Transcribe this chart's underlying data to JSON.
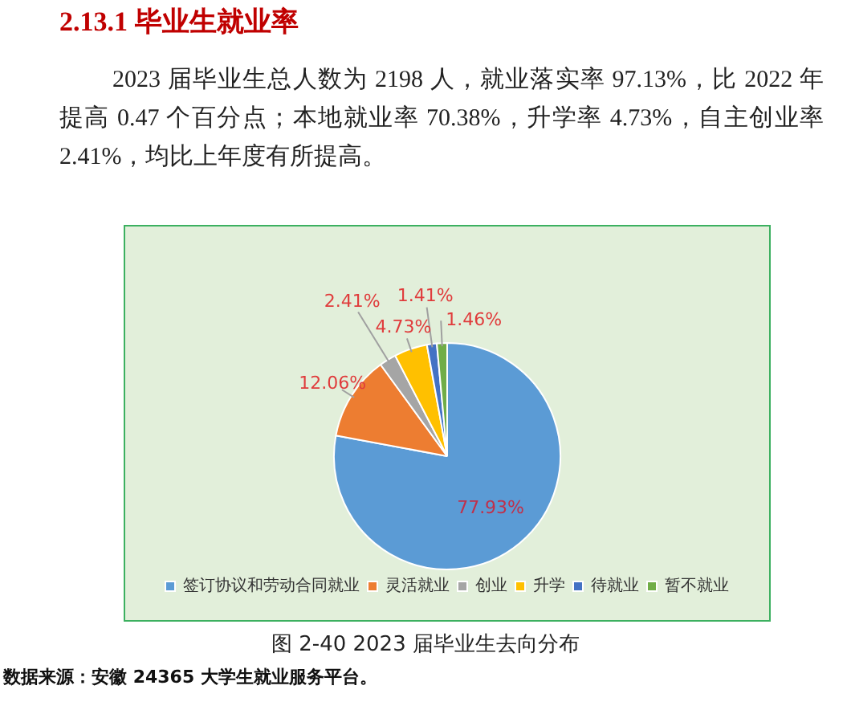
{
  "chart_data": {
    "type": "pie",
    "title": "2.13.1 毕业生就业率",
    "subtitle": "2023 届毕业生总人数为 2198 人，就业落实率 97.13%，比 2022 年提高 0.47 个百分点；本地就业率 70.38%，升学率 4.73%，自主创业率 2.41%，均比上年度有所提高。",
    "categories": [
      "签订协议和劳动合同就业",
      "灵活就业",
      "创业",
      "升学",
      "待就业",
      "暂不就业"
    ],
    "values": [
      77.93,
      12.06,
      2.41,
      4.73,
      1.41,
      1.46
    ],
    "colors": [
      "#5b9bd5",
      "#ed7d31",
      "#a5a5a5",
      "#ffc000",
      "#4472c4",
      "#70ad47"
    ],
    "value_labels": [
      "77.93%",
      "12.06%",
      "2.41%",
      "4.73%",
      "1.41%",
      "1.46%"
    ],
    "legend": "bottom",
    "annotations": [
      "图 2-40 2023 届毕业生去向分布",
      "数据来源：安徽 24365 大学生就业服务平台。"
    ]
  }
}
